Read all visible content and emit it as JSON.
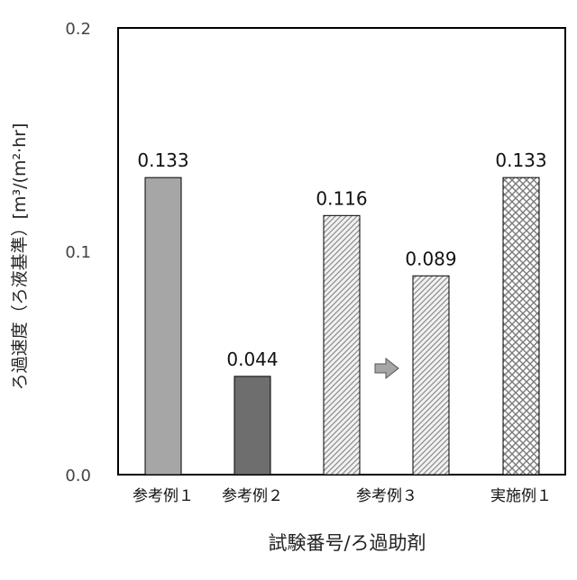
{
  "chart_data": {
    "type": "bar",
    "title": "",
    "xlabel": "試験番号/ろ過助剤",
    "ylabel": "ろ過速度（ろ液基準）[m³/(m²·hr]",
    "ylim": [
      0,
      0.2
    ],
    "yticks": [
      "0.0",
      "0.1",
      "0.2"
    ],
    "grid": false,
    "legend": "none",
    "bars": [
      {
        "value": 0.133,
        "label": "0.133",
        "fill": "solid",
        "color": "#a6a6a6"
      },
      {
        "value": 0.044,
        "label": "0.044",
        "fill": "solid",
        "color": "#6e6e6e"
      },
      {
        "value": 0.116,
        "label": "0.116",
        "fill": "diagonal-hatch",
        "color": "#8c8c8c"
      },
      {
        "value": 0.089,
        "label": "0.089",
        "fill": "diagonal-hatch",
        "color": "#8c8c8c"
      },
      {
        "value": 0.133,
        "label": "0.133",
        "fill": "cross-hatch",
        "color": "#8c8c8c"
      }
    ],
    "category_labels": [
      "参考例１",
      "参考例２",
      "参考例３",
      "実施例１"
    ],
    "annotation": "arrow-right"
  }
}
